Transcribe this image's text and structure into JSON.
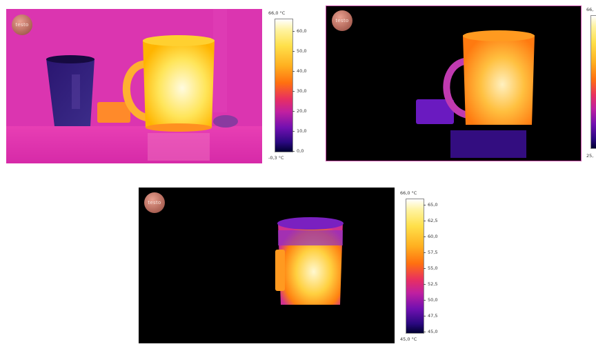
{
  "images": [
    {
      "logo_text": "testo",
      "scale_max": "66,0 °C",
      "scale_min": "-0,3 °C",
      "ticks": [
        "60,0",
        "50,0",
        "40,0",
        "30,0",
        "20,0",
        "10,0",
        "0,0"
      ]
    },
    {
      "logo_text": "testo",
      "scale_max": "66,",
      "scale_min": "25,"
    },
    {
      "logo_text": "testo",
      "scale_max": "66,0 °C",
      "scale_min": "45,0 °C",
      "ticks": [
        "65,0",
        "62,5",
        "60,0",
        "57,5",
        "55,0",
        "52,5",
        "50,0",
        "47,5",
        "45,0"
      ]
    }
  ]
}
